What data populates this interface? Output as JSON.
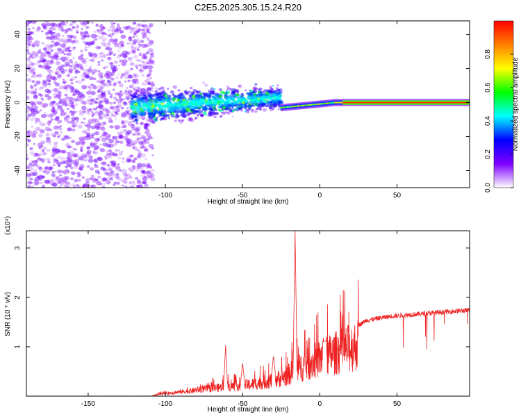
{
  "title": "C2E5.2025.305.15.24.R20",
  "chart_data": [
    {
      "type": "heatmap",
      "xlabel": "Height of straight line (km)",
      "ylabel": "Frequency (Hz)",
      "xlim": [
        -190,
        97
      ],
      "ylim": [
        -50,
        48
      ],
      "xticks": [
        -150,
        -100,
        -50,
        0,
        50
      ],
      "yticks": [
        -40,
        -20,
        0,
        20,
        40
      ],
      "colorbar": {
        "label": "Normalized spectral amplitude",
        "range": [
          0,
          1
        ],
        "ticks": [
          "0.0",
          "0.2",
          "0.4",
          "0.6",
          "0.8"
        ],
        "colors": [
          "#ffffff",
          "#7f00ff",
          "#0000ff",
          "#00ffff",
          "#00ff00",
          "#ffff00",
          "#ff8000",
          "#ff0000"
        ]
      },
      "regions": [
        {
          "x": [
            -190,
            -110
          ],
          "freq_spread": 48,
          "density": "high",
          "amplitude": "low-medium"
        },
        {
          "x": [
            -122,
            -25
          ],
          "freq_center": [
            -3,
            3
          ],
          "freq_spread": 12,
          "amplitude": "medium-high"
        },
        {
          "x": [
            -25,
            97
          ],
          "freq_center": 0,
          "freq_spread": 2,
          "amplitude": "high"
        }
      ]
    },
    {
      "type": "line",
      "xlabel": "Height of straight line (km)",
      "ylabel": "SNR (10 * v/v)",
      "y_multiplier": "(x10⁴)",
      "xlim": [
        -190,
        97
      ],
      "ylim": [
        0,
        3.35
      ],
      "xticks": [
        -150,
        -100,
        -50,
        0,
        50
      ],
      "yticks": [
        1,
        2,
        3
      ],
      "color": "#ee2222",
      "envelope": [
        [
          -190,
          0.0
        ],
        [
          -110,
          0.0
        ],
        [
          -103,
          0.06
        ],
        [
          -95,
          0.1
        ],
        [
          -85,
          0.14
        ],
        [
          -75,
          0.2
        ],
        [
          -65,
          0.24
        ],
        [
          -55,
          0.28
        ],
        [
          -45,
          0.32
        ],
        [
          -38,
          0.38
        ],
        [
          -30,
          0.45
        ],
        [
          -22,
          0.55
        ],
        [
          -17,
          0.7
        ],
        [
          -10,
          0.85
        ],
        [
          0,
          1.05
        ],
        [
          10,
          1.2
        ],
        [
          20,
          1.35
        ],
        [
          30,
          1.55
        ],
        [
          45,
          1.63
        ],
        [
          60,
          1.67
        ],
        [
          80,
          1.72
        ],
        [
          97,
          1.76
        ]
      ],
      "peaks": [
        {
          "x": -61,
          "y": 1.03
        },
        {
          "x": -50,
          "y": 0.68
        },
        {
          "x": -30,
          "y": 0.82
        },
        {
          "x": -16,
          "y": 3.35
        },
        {
          "x": 3,
          "y": 1.12
        }
      ]
    }
  ]
}
